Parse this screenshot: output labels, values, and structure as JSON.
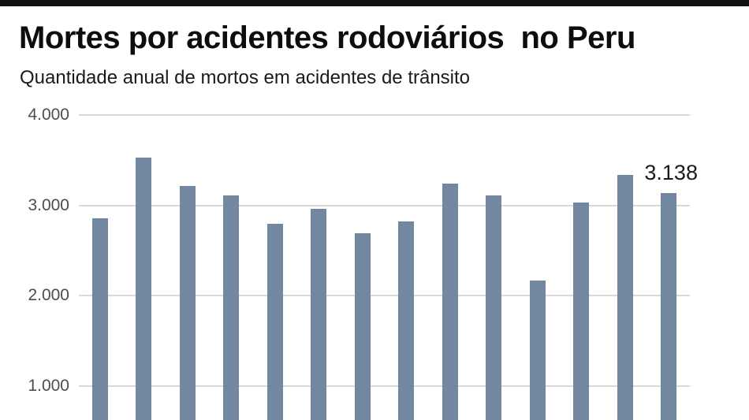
{
  "header": {
    "title": "Mortes por acidentes rodoviários  no Peru",
    "subtitle": "Quantidade anual de mortos em acidentes de trânsito"
  },
  "chart_data": {
    "type": "bar",
    "title": "Mortes por acidentes rodoviários no Peru",
    "subtitle": "Quantidade anual de mortos em acidentes de trânsito",
    "values": [
      2856,
      3531,
      3216,
      3114,
      2798,
      2965,
      2696,
      2826,
      3244,
      3110,
      2169,
      3034,
      3335,
      3138
    ],
    "y_ticks": [
      {
        "value": 4000,
        "label": "4.000"
      },
      {
        "value": 3000,
        "label": "3.000"
      },
      {
        "value": 2000,
        "label": "2.000"
      },
      {
        "value": 1000,
        "label": "1.000"
      }
    ],
    "ylabel": "",
    "xlabel": "",
    "x_axis_labels_visible": false,
    "grid": true,
    "legend": "none",
    "annotation": {
      "bar_index": 13,
      "label": "3.138"
    },
    "ylim_visible": [
      620,
      4250
    ]
  },
  "colors": {
    "bar": "#7188a0",
    "gridline": "#d9d9d9",
    "tick_label": "#4d4d4d",
    "top_bar": "#111111",
    "annotation_text": "#1b1b1b"
  }
}
